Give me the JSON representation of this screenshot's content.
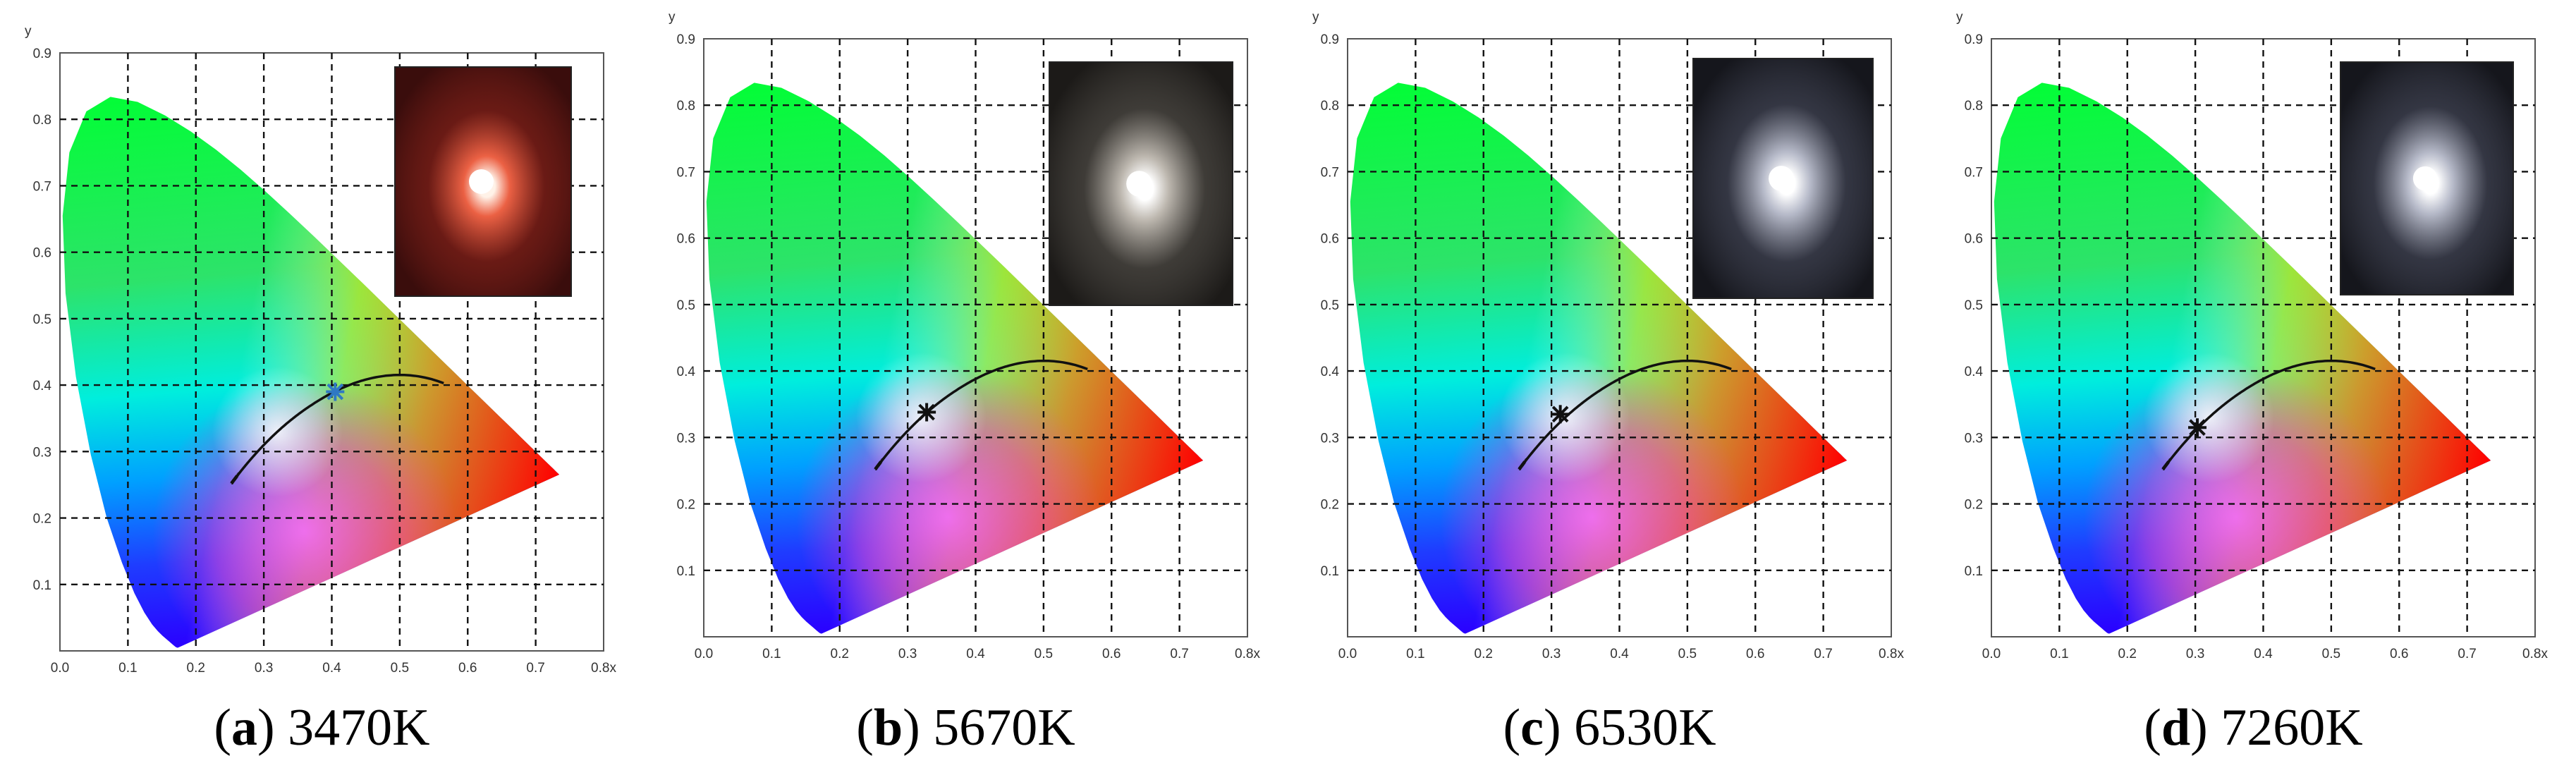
{
  "chart_data": [
    {
      "type": "scatter",
      "chart_kind": "CIE 1931 chromaticity diagram",
      "xlabel": "x",
      "ylabel": "y",
      "xlim": [
        0,
        0.8
      ],
      "ylim": [
        0,
        0.9
      ],
      "x_ticks": [
        "0.0",
        "0.1",
        "0.2",
        "0.3",
        "0.4",
        "0.5",
        "0.6",
        "0.7",
        "0.8"
      ],
      "y_ticks": [
        "0.1",
        "0.2",
        "0.3",
        "0.4",
        "0.5",
        "0.6",
        "0.7",
        "0.8",
        "0.9"
      ],
      "grid": true,
      "marker": {
        "x": 0.405,
        "y": 0.39,
        "color": "#2f78c4"
      },
      "caption_letter": "a",
      "caption_value": "3470K",
      "inset": {
        "content": "photo of light source",
        "tint": "red"
      }
    },
    {
      "type": "scatter",
      "chart_kind": "CIE 1931 chromaticity diagram",
      "xlabel": "x",
      "ylabel": "y",
      "xlim": [
        0,
        0.8
      ],
      "ylim": [
        0,
        0.9
      ],
      "x_ticks": [
        "0.0",
        "0.1",
        "0.2",
        "0.3",
        "0.4",
        "0.5",
        "0.6",
        "0.7",
        "0.8"
      ],
      "y_ticks": [
        "0.1",
        "0.2",
        "0.3",
        "0.4",
        "0.5",
        "0.6",
        "0.7",
        "0.8",
        "0.9"
      ],
      "grid": true,
      "marker": {
        "x": 0.328,
        "y": 0.338,
        "color": "#111111"
      },
      "caption_letter": "b",
      "caption_value": "5670K",
      "inset": {
        "content": "photo of light source",
        "tint": "neutral"
      }
    },
    {
      "type": "scatter",
      "chart_kind": "CIE 1931 chromaticity diagram",
      "xlabel": "x",
      "ylabel": "y",
      "xlim": [
        0,
        0.8
      ],
      "ylim": [
        0,
        0.9
      ],
      "x_ticks": [
        "0.0",
        "0.1",
        "0.2",
        "0.3",
        "0.4",
        "0.5",
        "0.6",
        "0.7",
        "0.8"
      ],
      "y_ticks": [
        "0.1",
        "0.2",
        "0.3",
        "0.4",
        "0.5",
        "0.6",
        "0.7",
        "0.8",
        "0.9"
      ],
      "grid": true,
      "marker": {
        "x": 0.313,
        "y": 0.335,
        "color": "#111111"
      },
      "caption_letter": "c",
      "caption_value": "6530K",
      "inset": {
        "content": "photo of light source",
        "tint": "cool"
      }
    },
    {
      "type": "scatter",
      "chart_kind": "CIE 1931 chromaticity diagram",
      "xlabel": "x",
      "ylabel": "y",
      "xlim": [
        0,
        0.8
      ],
      "ylim": [
        0,
        0.9
      ],
      "x_ticks": [
        "0.0",
        "0.1",
        "0.2",
        "0.3",
        "0.4",
        "0.5",
        "0.6",
        "0.7",
        "0.8"
      ],
      "y_ticks": [
        "0.1",
        "0.2",
        "0.3",
        "0.4",
        "0.5",
        "0.6",
        "0.7",
        "0.8",
        "0.9"
      ],
      "grid": true,
      "marker": {
        "x": 0.303,
        "y": 0.315,
        "color": "#111111"
      },
      "caption_letter": "d",
      "caption_value": "7260K",
      "inset": {
        "content": "photo of light source",
        "tint": "cool"
      }
    }
  ],
  "locus": [
    [
      0.1741,
      0.005
    ],
    [
      0.1738,
      0.0049
    ],
    [
      0.1726,
      0.0048
    ],
    [
      0.1703,
      0.0058
    ],
    [
      0.1666,
      0.0089
    ],
    [
      0.1611,
      0.0138
    ],
    [
      0.1566,
      0.0177
    ],
    [
      0.151,
      0.0227
    ],
    [
      0.144,
      0.0297
    ],
    [
      0.1355,
      0.0399
    ],
    [
      0.1241,
      0.0578
    ],
    [
      0.1096,
      0.0868
    ],
    [
      0.0913,
      0.1327
    ],
    [
      0.0687,
      0.2007
    ],
    [
      0.0454,
      0.295
    ],
    [
      0.0235,
      0.4127
    ],
    [
      0.0082,
      0.5384
    ],
    [
      0.0039,
      0.6548
    ],
    [
      0.0139,
      0.7502
    ],
    [
      0.0389,
      0.812
    ],
    [
      0.0743,
      0.8338
    ],
    [
      0.1142,
      0.8262
    ],
    [
      0.1547,
      0.8059
    ],
    [
      0.1929,
      0.7816
    ],
    [
      0.2296,
      0.7543
    ],
    [
      0.2658,
      0.7243
    ],
    [
      0.3016,
      0.6923
    ],
    [
      0.3373,
      0.6589
    ],
    [
      0.3731,
      0.6245
    ],
    [
      0.4087,
      0.5896
    ],
    [
      0.4441,
      0.5547
    ],
    [
      0.4788,
      0.5202
    ],
    [
      0.5125,
      0.4866
    ],
    [
      0.5448,
      0.4544
    ],
    [
      0.5752,
      0.4242
    ],
    [
      0.6029,
      0.3965
    ],
    [
      0.627,
      0.3725
    ],
    [
      0.6482,
      0.3514
    ],
    [
      0.6658,
      0.334
    ],
    [
      0.6801,
      0.3197
    ],
    [
      0.6915,
      0.3083
    ],
    [
      0.7006,
      0.2993
    ],
    [
      0.7079,
      0.292
    ],
    [
      0.714,
      0.2859
    ],
    [
      0.719,
      0.2809
    ],
    [
      0.723,
      0.277
    ],
    [
      0.726,
      0.274
    ],
    [
      0.7283,
      0.2717
    ],
    [
      0.73,
      0.27
    ],
    [
      0.7347,
      0.2653
    ]
  ]
}
